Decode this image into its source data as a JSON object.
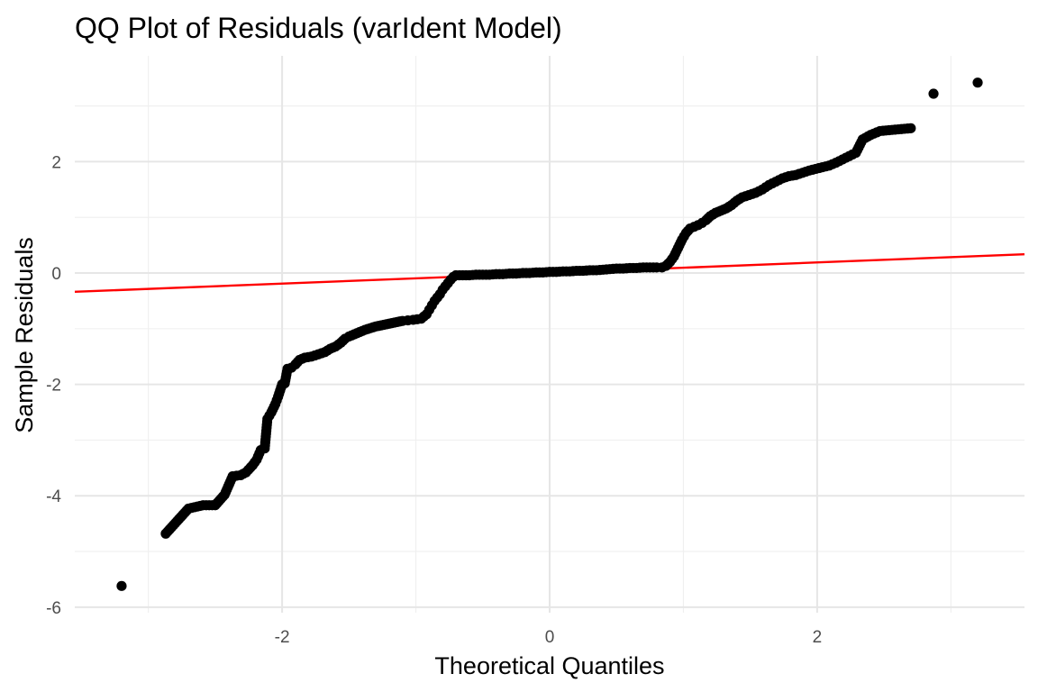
{
  "chart_data": {
    "type": "scatter",
    "title": "QQ Plot of Residuals (varIdent Model)",
    "xlabel": "Theoretical Quantiles",
    "ylabel": "Sample Residuals",
    "xlim": [
      -3.55,
      3.55
    ],
    "ylim": [
      -6.1,
      3.9
    ],
    "x_ticks": [
      -2,
      0,
      2
    ],
    "y_ticks": [
      -6,
      -4,
      -2,
      0,
      2
    ],
    "x_tick_labels": [
      "-2",
      "0",
      "2"
    ],
    "y_tick_labels": [
      "-6",
      "-4",
      "-2",
      "0",
      "2"
    ],
    "grid": true,
    "point_color": "#000000",
    "line_color": "#ff0000",
    "reference_line": {
      "intercept": 0.0,
      "slope": 0.095
    },
    "points": [
      [
        -3.2,
        -5.62
      ],
      [
        -2.87,
        -4.68
      ],
      [
        -2.7,
        -4.23
      ],
      [
        -2.59,
        -4.17
      ],
      [
        -2.5,
        -4.17
      ],
      [
        -2.43,
        -3.98
      ],
      [
        -2.37,
        -3.65
      ],
      [
        -2.31,
        -3.63
      ],
      [
        -2.27,
        -3.58
      ],
      [
        -2.22,
        -3.45
      ],
      [
        -2.19,
        -3.35
      ],
      [
        -2.16,
        -3.18
      ],
      [
        -2.13,
        -3.15
      ],
      [
        -2.11,
        -2.62
      ],
      [
        -2.08,
        -2.5
      ],
      [
        -2.05,
        -2.35
      ],
      [
        -2.03,
        -2.22
      ],
      [
        -2.0,
        -2.0
      ],
      [
        -1.98,
        -1.98
      ],
      [
        -1.96,
        -1.72
      ],
      [
        -1.93,
        -1.7
      ],
      [
        -1.9,
        -1.64
      ],
      [
        -1.87,
        -1.56
      ],
      [
        -1.83,
        -1.52
      ],
      [
        -1.78,
        -1.5
      ],
      [
        -1.73,
        -1.46
      ],
      [
        -1.68,
        -1.42
      ],
      [
        -1.64,
        -1.36
      ],
      [
        -1.6,
        -1.32
      ],
      [
        -1.56,
        -1.25
      ],
      [
        -1.53,
        -1.18
      ],
      [
        -1.5,
        -1.14
      ],
      [
        -1.46,
        -1.1
      ],
      [
        -1.42,
        -1.06
      ],
      [
        -1.38,
        -1.02
      ],
      [
        -1.34,
        -0.99
      ],
      [
        -1.3,
        -0.96
      ],
      [
        -1.26,
        -0.94
      ],
      [
        -1.22,
        -0.92
      ],
      [
        -1.18,
        -0.9
      ],
      [
        -1.14,
        -0.88
      ],
      [
        -1.1,
        -0.86
      ],
      [
        -1.06,
        -0.85
      ],
      [
        -1.02,
        -0.84
      ],
      [
        -0.99,
        -0.83
      ],
      [
        -0.96,
        -0.82
      ],
      [
        -0.94,
        -0.78
      ],
      [
        -0.92,
        -0.74
      ],
      [
        -0.9,
        -0.66
      ],
      [
        -0.88,
        -0.58
      ],
      [
        -0.86,
        -0.5
      ],
      [
        -0.84,
        -0.44
      ],
      [
        -0.82,
        -0.38
      ],
      [
        -0.8,
        -0.3
      ],
      [
        -0.78,
        -0.24
      ],
      [
        -0.76,
        -0.18
      ],
      [
        -0.74,
        -0.12
      ],
      [
        -0.72,
        -0.07
      ],
      [
        -0.7,
        -0.04
      ],
      [
        -0.65,
        -0.04
      ],
      [
        -0.6,
        -0.04
      ],
      [
        -0.55,
        -0.03
      ],
      [
        -0.5,
        -0.03
      ],
      [
        -0.45,
        -0.03
      ],
      [
        -0.4,
        -0.02
      ],
      [
        -0.35,
        -0.02
      ],
      [
        -0.3,
        -0.01
      ],
      [
        -0.25,
        -0.01
      ],
      [
        -0.2,
        0.0
      ],
      [
        -0.15,
        0.0
      ],
      [
        -0.1,
        0.01
      ],
      [
        -0.05,
        0.01
      ],
      [
        0.0,
        0.02
      ],
      [
        0.05,
        0.02
      ],
      [
        0.1,
        0.03
      ],
      [
        0.15,
        0.03
      ],
      [
        0.2,
        0.04
      ],
      [
        0.25,
        0.04
      ],
      [
        0.3,
        0.05
      ],
      [
        0.35,
        0.05
      ],
      [
        0.4,
        0.06
      ],
      [
        0.45,
        0.07
      ],
      [
        0.5,
        0.08
      ],
      [
        0.55,
        0.08
      ],
      [
        0.6,
        0.09
      ],
      [
        0.65,
        0.09
      ],
      [
        0.7,
        0.1
      ],
      [
        0.75,
        0.1
      ],
      [
        0.8,
        0.1
      ],
      [
        0.84,
        0.1
      ],
      [
        0.87,
        0.13
      ],
      [
        0.9,
        0.2
      ],
      [
        0.93,
        0.3
      ],
      [
        0.96,
        0.45
      ],
      [
        0.99,
        0.6
      ],
      [
        1.02,
        0.72
      ],
      [
        1.05,
        0.8
      ],
      [
        1.08,
        0.83
      ],
      [
        1.11,
        0.86
      ],
      [
        1.14,
        0.9
      ],
      [
        1.17,
        0.95
      ],
      [
        1.2,
        1.02
      ],
      [
        1.24,
        1.08
      ],
      [
        1.28,
        1.12
      ],
      [
        1.32,
        1.16
      ],
      [
        1.36,
        1.22
      ],
      [
        1.4,
        1.3
      ],
      [
        1.44,
        1.36
      ],
      [
        1.49,
        1.4
      ],
      [
        1.54,
        1.44
      ],
      [
        1.59,
        1.5
      ],
      [
        1.64,
        1.58
      ],
      [
        1.69,
        1.64
      ],
      [
        1.74,
        1.7
      ],
      [
        1.79,
        1.74
      ],
      [
        1.84,
        1.76
      ],
      [
        1.89,
        1.8
      ],
      [
        1.94,
        1.84
      ],
      [
        1.99,
        1.87
      ],
      [
        2.04,
        1.9
      ],
      [
        2.09,
        1.93
      ],
      [
        2.14,
        1.98
      ],
      [
        2.19,
        2.04
      ],
      [
        2.24,
        2.1
      ],
      [
        2.29,
        2.16
      ],
      [
        2.34,
        2.4
      ],
      [
        2.4,
        2.48
      ],
      [
        2.47,
        2.55
      ],
      [
        2.56,
        2.57
      ],
      [
        2.7,
        2.6
      ],
      [
        2.87,
        3.22
      ],
      [
        3.2,
        3.42
      ]
    ]
  }
}
